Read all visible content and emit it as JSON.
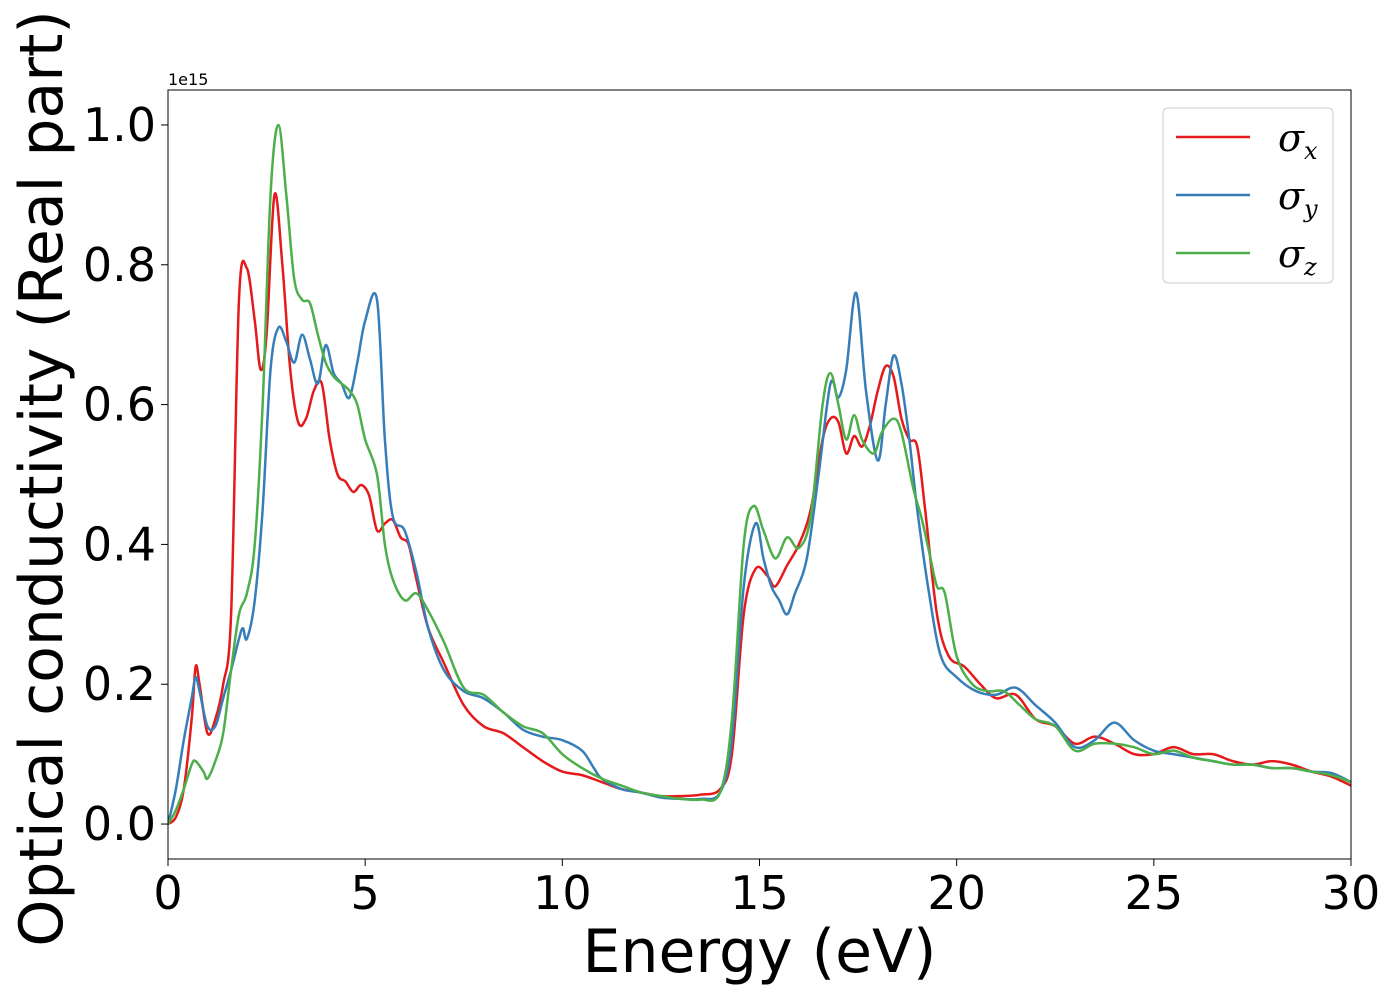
{
  "chart_data": {
    "type": "line",
    "xlabel": "Energy (eV)",
    "ylabel": "Optical conductivity (Real part)",
    "y_offset_text": "1e15",
    "xlim": [
      0,
      30
    ],
    "ylim": [
      -0.05,
      1.05
    ],
    "xticks": [
      0,
      5,
      10,
      15,
      20,
      25,
      30
    ],
    "xtick_labels": [
      "0",
      "5",
      "10",
      "15",
      "20",
      "25",
      "30"
    ],
    "yticks": [
      0.0,
      0.2,
      0.4,
      0.6,
      0.8,
      1.0
    ],
    "ytick_labels": [
      "0.0",
      "0.2",
      "0.4",
      "0.6",
      "0.8",
      "1.0"
    ],
    "grid": false,
    "legend_position": "top-right",
    "series": [
      {
        "name": "σx",
        "legend_base": "σ",
        "legend_sub": "x",
        "color": "#e41a1c",
        "points": [
          [
            0,
            0.0
          ],
          [
            0.2,
            0.01
          ],
          [
            0.4,
            0.05
          ],
          [
            0.6,
            0.15
          ],
          [
            0.7,
            0.225
          ],
          [
            0.8,
            0.2
          ],
          [
            1.0,
            0.13
          ],
          [
            1.2,
            0.15
          ],
          [
            1.4,
            0.2
          ],
          [
            1.6,
            0.3
          ],
          [
            1.8,
            0.75
          ],
          [
            2.0,
            0.795
          ],
          [
            2.2,
            0.72
          ],
          [
            2.35,
            0.65
          ],
          [
            2.5,
            0.7
          ],
          [
            2.7,
            0.9
          ],
          [
            2.9,
            0.8
          ],
          [
            3.1,
            0.65
          ],
          [
            3.3,
            0.575
          ],
          [
            3.5,
            0.58
          ],
          [
            3.7,
            0.62
          ],
          [
            3.9,
            0.63
          ],
          [
            4.1,
            0.55
          ],
          [
            4.3,
            0.5
          ],
          [
            4.5,
            0.49
          ],
          [
            4.7,
            0.475
          ],
          [
            4.9,
            0.485
          ],
          [
            5.1,
            0.47
          ],
          [
            5.3,
            0.42
          ],
          [
            5.5,
            0.43
          ],
          [
            5.7,
            0.435
          ],
          [
            5.9,
            0.41
          ],
          [
            6.1,
            0.4
          ],
          [
            6.3,
            0.35
          ],
          [
            6.6,
            0.28
          ],
          [
            7.0,
            0.23
          ],
          [
            7.5,
            0.17
          ],
          [
            8.0,
            0.14
          ],
          [
            8.5,
            0.13
          ],
          [
            9.0,
            0.11
          ],
          [
            9.5,
            0.09
          ],
          [
            10.0,
            0.075
          ],
          [
            10.5,
            0.07
          ],
          [
            11.0,
            0.06
          ],
          [
            11.5,
            0.05
          ],
          [
            12.0,
            0.045
          ],
          [
            12.5,
            0.04
          ],
          [
            13.0,
            0.04
          ],
          [
            13.5,
            0.042
          ],
          [
            14.0,
            0.05
          ],
          [
            14.3,
            0.1
          ],
          [
            14.6,
            0.3
          ],
          [
            14.9,
            0.365
          ],
          [
            15.2,
            0.355
          ],
          [
            15.4,
            0.34
          ],
          [
            15.7,
            0.37
          ],
          [
            16.0,
            0.4
          ],
          [
            16.3,
            0.45
          ],
          [
            16.6,
            0.55
          ],
          [
            16.8,
            0.58
          ],
          [
            17.0,
            0.575
          ],
          [
            17.2,
            0.53
          ],
          [
            17.4,
            0.555
          ],
          [
            17.6,
            0.54
          ],
          [
            17.8,
            0.57
          ],
          [
            18.0,
            0.62
          ],
          [
            18.2,
            0.655
          ],
          [
            18.4,
            0.64
          ],
          [
            18.6,
            0.58
          ],
          [
            18.8,
            0.55
          ],
          [
            19.0,
            0.54
          ],
          [
            19.2,
            0.45
          ],
          [
            19.5,
            0.3
          ],
          [
            19.8,
            0.24
          ],
          [
            20.2,
            0.225
          ],
          [
            20.6,
            0.2
          ],
          [
            21.0,
            0.18
          ],
          [
            21.5,
            0.185
          ],
          [
            22.0,
            0.15
          ],
          [
            22.5,
            0.14
          ],
          [
            23.0,
            0.115
          ],
          [
            23.5,
            0.125
          ],
          [
            24.0,
            0.115
          ],
          [
            24.5,
            0.1
          ],
          [
            25.0,
            0.1
          ],
          [
            25.5,
            0.11
          ],
          [
            26.0,
            0.1
          ],
          [
            26.5,
            0.1
          ],
          [
            27.0,
            0.09
          ],
          [
            27.5,
            0.085
          ],
          [
            28.0,
            0.09
          ],
          [
            28.5,
            0.085
          ],
          [
            29.0,
            0.075
          ],
          [
            29.5,
            0.068
          ],
          [
            30.0,
            0.055
          ]
        ]
      },
      {
        "name": "σy",
        "legend_base": "σ",
        "legend_sub": "y",
        "color": "#377eb8",
        "points": [
          [
            0,
            0.0
          ],
          [
            0.2,
            0.05
          ],
          [
            0.4,
            0.12
          ],
          [
            0.6,
            0.18
          ],
          [
            0.7,
            0.21
          ],
          [
            0.8,
            0.19
          ],
          [
            1.0,
            0.14
          ],
          [
            1.2,
            0.14
          ],
          [
            1.4,
            0.18
          ],
          [
            1.6,
            0.22
          ],
          [
            1.8,
            0.265
          ],
          [
            1.9,
            0.28
          ],
          [
            2.0,
            0.265
          ],
          [
            2.2,
            0.32
          ],
          [
            2.4,
            0.45
          ],
          [
            2.6,
            0.65
          ],
          [
            2.8,
            0.71
          ],
          [
            3.0,
            0.69
          ],
          [
            3.2,
            0.66
          ],
          [
            3.4,
            0.7
          ],
          [
            3.6,
            0.665
          ],
          [
            3.8,
            0.63
          ],
          [
            4.0,
            0.685
          ],
          [
            4.2,
            0.645
          ],
          [
            4.4,
            0.63
          ],
          [
            4.6,
            0.61
          ],
          [
            4.8,
            0.66
          ],
          [
            5.0,
            0.72
          ],
          [
            5.3,
            0.75
          ],
          [
            5.5,
            0.55
          ],
          [
            5.7,
            0.44
          ],
          [
            6.0,
            0.42
          ],
          [
            6.3,
            0.36
          ],
          [
            6.6,
            0.28
          ],
          [
            7.0,
            0.22
          ],
          [
            7.5,
            0.19
          ],
          [
            8.0,
            0.18
          ],
          [
            8.5,
            0.16
          ],
          [
            9.0,
            0.135
          ],
          [
            9.5,
            0.125
          ],
          [
            10.0,
            0.12
          ],
          [
            10.5,
            0.105
          ],
          [
            10.8,
            0.08
          ],
          [
            11.0,
            0.065
          ],
          [
            11.5,
            0.05
          ],
          [
            12.0,
            0.045
          ],
          [
            12.5,
            0.038
          ],
          [
            13.0,
            0.036
          ],
          [
            13.5,
            0.036
          ],
          [
            14.0,
            0.045
          ],
          [
            14.3,
            0.12
          ],
          [
            14.6,
            0.34
          ],
          [
            14.9,
            0.43
          ],
          [
            15.1,
            0.38
          ],
          [
            15.3,
            0.34
          ],
          [
            15.5,
            0.32
          ],
          [
            15.7,
            0.3
          ],
          [
            15.9,
            0.33
          ],
          [
            16.2,
            0.38
          ],
          [
            16.5,
            0.5
          ],
          [
            16.8,
            0.63
          ],
          [
            17.0,
            0.61
          ],
          [
            17.2,
            0.65
          ],
          [
            17.45,
            0.76
          ],
          [
            17.7,
            0.62
          ],
          [
            18.0,
            0.52
          ],
          [
            18.2,
            0.6
          ],
          [
            18.4,
            0.67
          ],
          [
            18.6,
            0.63
          ],
          [
            18.8,
            0.55
          ],
          [
            19.0,
            0.45
          ],
          [
            19.3,
            0.33
          ],
          [
            19.6,
            0.24
          ],
          [
            20.0,
            0.21
          ],
          [
            20.5,
            0.19
          ],
          [
            21.0,
            0.185
          ],
          [
            21.5,
            0.195
          ],
          [
            22.0,
            0.17
          ],
          [
            22.5,
            0.145
          ],
          [
            23.0,
            0.11
          ],
          [
            23.5,
            0.12
          ],
          [
            24.0,
            0.145
          ],
          [
            24.5,
            0.12
          ],
          [
            25.0,
            0.105
          ],
          [
            25.5,
            0.1
          ],
          [
            26.0,
            0.095
          ],
          [
            26.5,
            0.09
          ],
          [
            27.0,
            0.085
          ],
          [
            27.5,
            0.085
          ],
          [
            28.0,
            0.08
          ],
          [
            28.5,
            0.08
          ],
          [
            29.0,
            0.075
          ],
          [
            29.5,
            0.073
          ],
          [
            30.0,
            0.06
          ]
        ]
      },
      {
        "name": "σz",
        "legend_base": "σ",
        "legend_sub": "z",
        "color": "#4daf4a",
        "points": [
          [
            0,
            0.0
          ],
          [
            0.2,
            0.02
          ],
          [
            0.4,
            0.05
          ],
          [
            0.6,
            0.085
          ],
          [
            0.7,
            0.09
          ],
          [
            0.9,
            0.075
          ],
          [
            1.0,
            0.065
          ],
          [
            1.2,
            0.09
          ],
          [
            1.4,
            0.13
          ],
          [
            1.6,
            0.22
          ],
          [
            1.8,
            0.3
          ],
          [
            2.0,
            0.33
          ],
          [
            2.2,
            0.4
          ],
          [
            2.4,
            0.6
          ],
          [
            2.6,
            0.9
          ],
          [
            2.8,
            1.0
          ],
          [
            3.0,
            0.9
          ],
          [
            3.2,
            0.78
          ],
          [
            3.4,
            0.75
          ],
          [
            3.6,
            0.745
          ],
          [
            3.8,
            0.7
          ],
          [
            4.0,
            0.66
          ],
          [
            4.2,
            0.64
          ],
          [
            4.4,
            0.63
          ],
          [
            4.6,
            0.62
          ],
          [
            4.8,
            0.6
          ],
          [
            5.0,
            0.55
          ],
          [
            5.3,
            0.5
          ],
          [
            5.5,
            0.4
          ],
          [
            5.7,
            0.35
          ],
          [
            6.0,
            0.32
          ],
          [
            6.3,
            0.33
          ],
          [
            6.6,
            0.305
          ],
          [
            7.0,
            0.26
          ],
          [
            7.5,
            0.195
          ],
          [
            8.0,
            0.185
          ],
          [
            8.5,
            0.16
          ],
          [
            9.0,
            0.14
          ],
          [
            9.5,
            0.13
          ],
          [
            10.0,
            0.1
          ],
          [
            10.5,
            0.08
          ],
          [
            11.0,
            0.065
          ],
          [
            11.5,
            0.055
          ],
          [
            12.0,
            0.045
          ],
          [
            12.5,
            0.04
          ],
          [
            13.0,
            0.036
          ],
          [
            13.5,
            0.035
          ],
          [
            14.0,
            0.045
          ],
          [
            14.3,
            0.15
          ],
          [
            14.6,
            0.4
          ],
          [
            14.85,
            0.455
          ],
          [
            15.1,
            0.42
          ],
          [
            15.4,
            0.38
          ],
          [
            15.7,
            0.41
          ],
          [
            16.0,
            0.395
          ],
          [
            16.3,
            0.44
          ],
          [
            16.6,
            0.6
          ],
          [
            16.8,
            0.645
          ],
          [
            17.0,
            0.6
          ],
          [
            17.2,
            0.55
          ],
          [
            17.4,
            0.585
          ],
          [
            17.6,
            0.55
          ],
          [
            17.9,
            0.53
          ],
          [
            18.1,
            0.56
          ],
          [
            18.4,
            0.58
          ],
          [
            18.6,
            0.56
          ],
          [
            18.9,
            0.48
          ],
          [
            19.1,
            0.44
          ],
          [
            19.3,
            0.39
          ],
          [
            19.5,
            0.34
          ],
          [
            19.7,
            0.33
          ],
          [
            20.0,
            0.24
          ],
          [
            20.4,
            0.2
          ],
          [
            20.8,
            0.19
          ],
          [
            21.2,
            0.19
          ],
          [
            21.6,
            0.17
          ],
          [
            22.0,
            0.15
          ],
          [
            22.5,
            0.14
          ],
          [
            23.0,
            0.105
          ],
          [
            23.5,
            0.115
          ],
          [
            24.0,
            0.115
          ],
          [
            24.5,
            0.11
          ],
          [
            25.0,
            0.1
          ],
          [
            25.5,
            0.105
          ],
          [
            26.0,
            0.095
          ],
          [
            26.5,
            0.09
          ],
          [
            27.0,
            0.085
          ],
          [
            27.5,
            0.085
          ],
          [
            28.0,
            0.08
          ],
          [
            28.5,
            0.08
          ],
          [
            29.0,
            0.075
          ],
          [
            29.5,
            0.07
          ],
          [
            30.0,
            0.06
          ]
        ]
      }
    ]
  }
}
